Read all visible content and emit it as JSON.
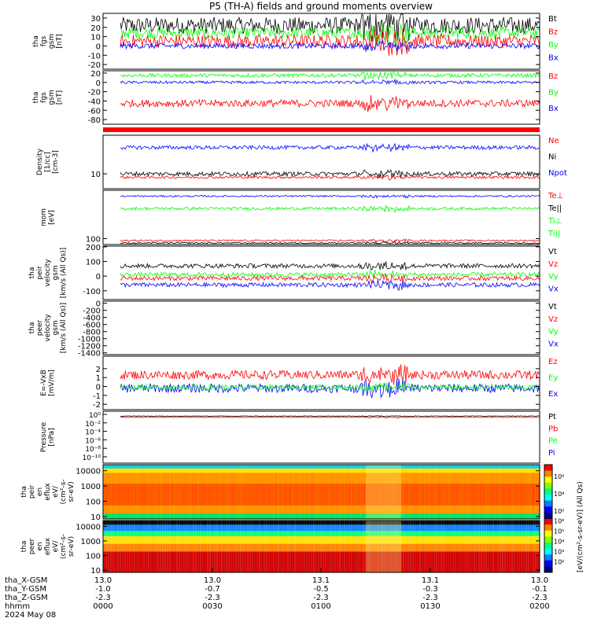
{
  "title": "P5 (TH-A) fields and ground moments overview",
  "colors": {
    "black": "#000000",
    "red": "#ff0000",
    "green": "#00ff00",
    "blue": "#0000ff"
  },
  "chart_data": [
    {
      "type": "line",
      "ylabel_lines": [
        "tha",
        "fgs",
        "gsm",
        "[nT]"
      ],
      "ylim": [
        -25,
        35
      ],
      "ticks": [
        -20,
        -10,
        0,
        10,
        20,
        30
      ],
      "legend": [
        {
          "label": "Bt",
          "color": "#000000"
        },
        {
          "label": "Bz",
          "color": "#ff0000"
        },
        {
          "label": "By",
          "color": "#00ff00"
        },
        {
          "label": "Bx",
          "color": "#0000ff"
        }
      ],
      "series": [
        {
          "color": "#000000",
          "base": 22,
          "noise": 9
        },
        {
          "color": "#00ff00",
          "base": 14,
          "noise": 6
        },
        {
          "color": "#ff0000",
          "base": 5,
          "noise": 7
        },
        {
          "color": "#0000ff",
          "base": 0,
          "noise": 3
        }
      ]
    },
    {
      "type": "line",
      "ylabel_lines": [
        "tha",
        "fgs",
        "gsm",
        "[nT]"
      ],
      "ylim": [
        -90,
        25
      ],
      "ticks": [
        -80,
        -60,
        -40,
        -20,
        0,
        20
      ],
      "legend": [
        {
          "label": "Bz",
          "color": "#ff0000"
        },
        {
          "label": "By",
          "color": "#00ff00"
        },
        {
          "label": "Bx",
          "color": "#0000ff"
        }
      ],
      "series": [
        {
          "color": "#00ff00",
          "base": 15,
          "noise": 4
        },
        {
          "color": "#0000ff",
          "base": 0,
          "noise": 3
        },
        {
          "color": "#ff0000",
          "base": -45,
          "noise": 8
        }
      ]
    },
    {
      "type": "line",
      "ylabel_lines": [
        "Density",
        "[1/cc]",
        "[cm-3]"
      ],
      "ylim": [
        5,
        60
      ],
      "scale": "log",
      "ticks": [
        10
      ],
      "legend": [
        {
          "label": "Ne",
          "color": "#ff0000"
        },
        {
          "label": "Ni",
          "color": "#000000"
        },
        {
          "label": "Npot",
          "color": "#0000ff"
        }
      ],
      "series": [
        {
          "color": "#0000ff",
          "base": 34,
          "noise": 3
        },
        {
          "color": "#000000",
          "base": 10,
          "noise": 1
        },
        {
          "color": "#ff0000",
          "base": 8.5,
          "noise": 0.5
        }
      ]
    },
    {
      "type": "line",
      "ylabel_lines": [
        "mom",
        "[eV]"
      ],
      "ylim": [
        50,
        30000
      ],
      "scale": "log",
      "ticks": [
        100
      ],
      "legend": [
        {
          "label": "Te⊥",
          "color": "#ff0000"
        },
        {
          "label": "Te||",
          "color": "#000000"
        },
        {
          "label": "Ti⊥",
          "color": "#00ff00"
        },
        {
          "label": "Ti||",
          "color": "#00ff00"
        }
      ],
      "series": [
        {
          "color": "#0000ff",
          "base": 15000,
          "noise": 1500
        },
        {
          "color": "#00ff00",
          "base": 3500,
          "noise": 600
        },
        {
          "color": "#ff0000",
          "base": 80,
          "noise": 8
        },
        {
          "color": "#000000",
          "base": 60,
          "noise": 5
        }
      ]
    },
    {
      "type": "line",
      "ylabel_lines": [
        "tha",
        "peir",
        "velocity",
        "gsm",
        "[km/s (All Qs)]"
      ],
      "ylim": [
        -160,
        205
      ],
      "ticks": [
        -100,
        0,
        100,
        200
      ],
      "legend": [
        {
          "label": "Vt",
          "color": "#000000"
        },
        {
          "label": "Vz",
          "color": "#ff0000"
        },
        {
          "label": "Vy",
          "color": "#00ff00"
        },
        {
          "label": "Vx",
          "color": "#0000ff"
        }
      ],
      "series": [
        {
          "color": "#000000",
          "base": 70,
          "noise": 15
        },
        {
          "color": "#00ff00",
          "base": 10,
          "noise": 15
        },
        {
          "color": "#ff0000",
          "base": -15,
          "noise": 15
        },
        {
          "color": "#0000ff",
          "base": -60,
          "noise": 15
        }
      ]
    },
    {
      "type": "line",
      "ylabel_lines": [
        "tha",
        "peer",
        "velocity",
        "gsm",
        "[km/s (All Qs)]"
      ],
      "ylim": [
        -1450,
        60
      ],
      "ticks": [
        -1400,
        -1200,
        -1000,
        -800,
        -600,
        -400,
        -200,
        0
      ],
      "legend": [
        {
          "label": "Vt",
          "color": "#000000"
        },
        {
          "label": "Vz",
          "color": "#ff0000"
        },
        {
          "label": "Vy",
          "color": "#00ff00"
        },
        {
          "label": "Vx",
          "color": "#0000ff"
        }
      ],
      "series": []
    },
    {
      "type": "line",
      "ylabel_lines": [
        "E=-VxB",
        "[mV/m]"
      ],
      "ylim": [
        -2.6,
        3.4
      ],
      "ticks": [
        -2,
        -1,
        0,
        1,
        2
      ],
      "legend": [
        {
          "label": "Ez",
          "color": "#ff0000"
        },
        {
          "label": "Ey",
          "color": "#00ff00"
        },
        {
          "label": "Ex",
          "color": "#0000ff"
        }
      ],
      "series": [
        {
          "color": "#ff0000",
          "base": 1.3,
          "noise": 0.5
        },
        {
          "color": "#0000ff",
          "base": -0.2,
          "noise": 0.5
        },
        {
          "color": "#00ff00",
          "base": -0.1,
          "noise": 0.3
        }
      ]
    },
    {
      "type": "line",
      "ylabel_lines": [
        "Pressure",
        "[nPa]"
      ],
      "ylim": [
        1e-12,
        10
      ],
      "scale": "log",
      "ticks_text": [
        "10⁻¹⁰",
        "10⁻⁸",
        "10⁻⁶",
        "10⁻⁴",
        "10⁻²",
        "10⁰"
      ],
      "legend": [
        {
          "label": "Pt",
          "color": "#000000"
        },
        {
          "label": "Pb",
          "color": "#ff0000"
        },
        {
          "label": "Pe",
          "color": "#00ff00"
        },
        {
          "label": "Pi",
          "color": "#0000ff"
        }
      ],
      "series": [
        {
          "color": "#000000",
          "base": 0.6,
          "noise": 0.1
        },
        {
          "color": "#ff0000",
          "base": 0.3,
          "noise": 0.05
        }
      ]
    },
    {
      "type": "heatmap",
      "ylabel_lines": [
        "tha",
        "peir",
        "en",
        "eflux",
        "eV/",
        "(cm²-s-",
        "sr-eV)"
      ],
      "ylim": [
        7,
        25000
      ],
      "scale": "log",
      "ticks": [
        10,
        100,
        1000,
        10000
      ]
    },
    {
      "type": "heatmap",
      "ylabel_lines": [
        "tha",
        "peer",
        "en",
        "eflux",
        "eV/",
        "(cm²-s-",
        "sr-eV)"
      ],
      "ylim": [
        7,
        25000
      ],
      "scale": "log",
      "ticks": [
        10,
        100,
        1000,
        10000
      ]
    }
  ],
  "colorbar": {
    "label": "[eV/(cm²-s-sr-eV)] (All Qs)",
    "ticks_text": [
      "10⁸",
      "10⁴",
      "10⁰",
      "10⁶",
      "10⁵",
      "10⁴",
      "10³",
      "10²"
    ]
  },
  "time_axis": {
    "rows": [
      {
        "label": "tha_X-GSM",
        "values": [
          "13.0",
          "13.0",
          "13.1",
          "13.1",
          "13.0"
        ]
      },
      {
        "label": "tha_Y-GSM",
        "values": [
          "-1.0",
          "-0.7",
          "-0.5",
          "-0.3",
          "-0.1"
        ]
      },
      {
        "label": "tha_Z-GSM",
        "values": [
          "-2.3",
          "-2.3",
          "-2.3",
          "-2.3",
          "-2.3"
        ]
      },
      {
        "label": "hhmm",
        "values": [
          "0000",
          "0030",
          "0100",
          "0130",
          "0200"
        ]
      }
    ],
    "date": "2024 May 08"
  }
}
